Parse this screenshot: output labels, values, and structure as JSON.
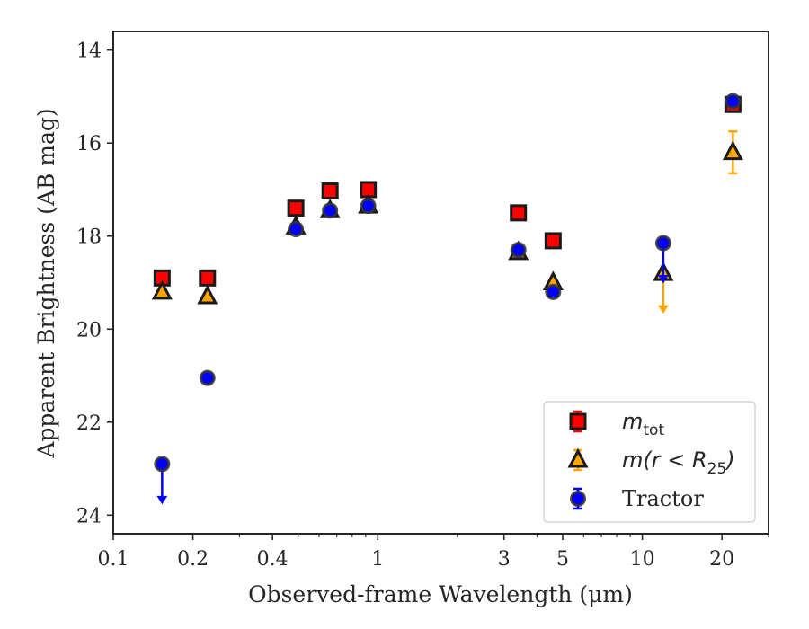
{
  "chart_data": {
    "type": "scatter",
    "title": "",
    "xlabel": "Observed-frame Wavelength (μm)",
    "ylabel": "Apparent Brightness (AB mag)",
    "xscale": "log",
    "xlim": [
      0.1,
      30
    ],
    "ylim": [
      24.4,
      13.6
    ],
    "y_inverted": true,
    "grid": false,
    "legend_position": "lower-right",
    "x_ticks": [
      0.1,
      0.2,
      0.4,
      1,
      3,
      5,
      10,
      20
    ],
    "x_tick_labels": [
      "0.1",
      "0.2",
      "0.4",
      "1",
      "3",
      "5",
      "10",
      "20"
    ],
    "x_minor_ticks": [
      0.3,
      0.5,
      0.6,
      0.7,
      0.8,
      0.9,
      2,
      4,
      6,
      7,
      8,
      9,
      30
    ],
    "y_ticks": [
      14,
      16,
      18,
      20,
      22,
      24
    ],
    "y_tick_labels": [
      "14",
      "16",
      "18",
      "20",
      "22",
      "24"
    ],
    "series": [
      {
        "key": "mtot",
        "name": "m_tot",
        "legend_main": "m",
        "legend_sub": "tot",
        "marker": "square",
        "face_color": "#ff0000",
        "edge_color": "#1a1a1a",
        "error_color": "#ff0000",
        "points": [
          {
            "x": 0.153,
            "y": 18.9
          },
          {
            "x": 0.227,
            "y": 18.9
          },
          {
            "x": 0.49,
            "y": 17.4
          },
          {
            "x": 0.66,
            "y": 17.03
          },
          {
            "x": 0.92,
            "y": 17.0
          },
          {
            "x": 3.4,
            "y": 17.5
          },
          {
            "x": 4.6,
            "y": 18.1
          },
          {
            "x": 22.0,
            "y": 15.17,
            "yerr": 0.12
          }
        ]
      },
      {
        "key": "m25",
        "name": "m(r < R25)",
        "legend_main": "m(r < R",
        "legend_sub": "25",
        "legend_after": ")",
        "marker": "triangle",
        "face_color": "#ffa500",
        "edge_color": "#1a1a1a",
        "error_color": "#ffa500",
        "points": [
          {
            "x": 0.153,
            "y": 19.2
          },
          {
            "x": 0.227,
            "y": 19.3
          },
          {
            "x": 0.49,
            "y": 17.8
          },
          {
            "x": 0.66,
            "y": 17.45
          },
          {
            "x": 0.92,
            "y": 17.35
          },
          {
            "x": 3.4,
            "y": 18.35
          },
          {
            "x": 4.6,
            "y": 19.0
          },
          {
            "x": 12.0,
            "y": 18.8,
            "upper_limit": true
          },
          {
            "x": 22.0,
            "y": 16.2,
            "yerr": 0.45
          }
        ]
      },
      {
        "key": "tractor",
        "name": "Tractor",
        "legend_main": "Tractor",
        "marker": "circle",
        "face_color": "#0000ff",
        "edge_color": "#333333",
        "error_color": "#0000ff",
        "points": [
          {
            "x": 0.153,
            "y": 22.9,
            "upper_limit": true
          },
          {
            "x": 0.227,
            "y": 21.05
          },
          {
            "x": 0.49,
            "y": 17.85
          },
          {
            "x": 0.66,
            "y": 17.45
          },
          {
            "x": 0.92,
            "y": 17.35
          },
          {
            "x": 3.4,
            "y": 18.3
          },
          {
            "x": 4.6,
            "y": 19.2
          },
          {
            "x": 12.0,
            "y": 18.15,
            "upper_limit": true
          },
          {
            "x": 22.0,
            "y": 15.1,
            "yerr": 0.1
          }
        ]
      }
    ]
  }
}
